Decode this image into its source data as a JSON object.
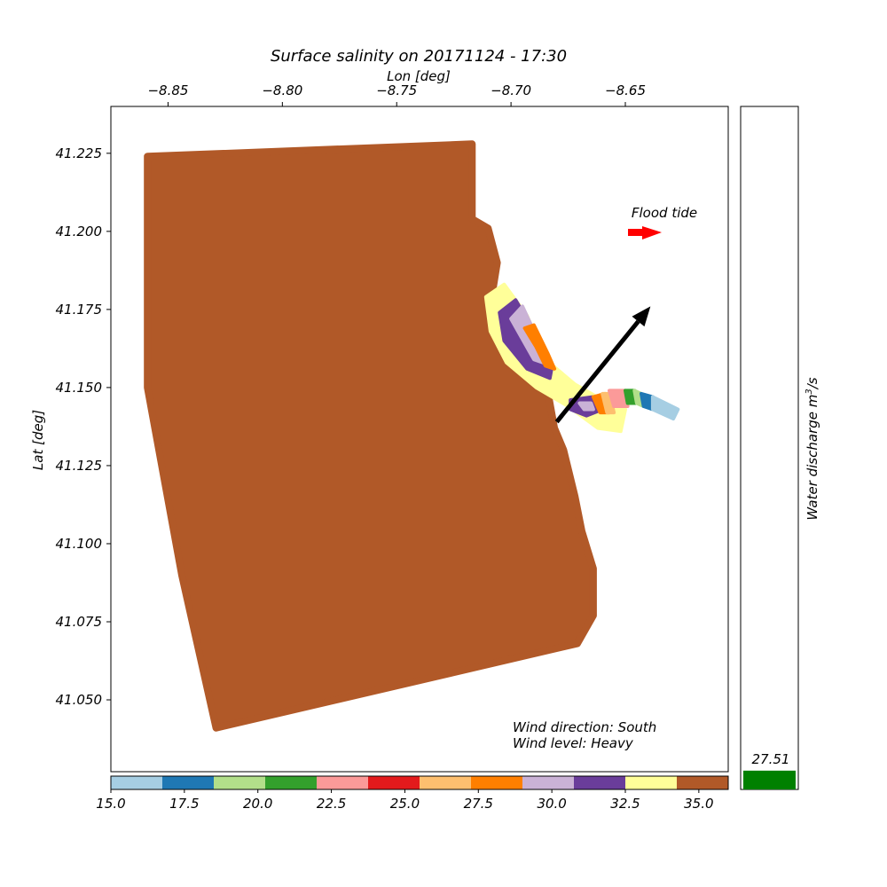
{
  "chart_data": {
    "type": "scatter",
    "title": "Surface salinity on 20171124 - 17:30",
    "xlabel": "Lon [deg]",
    "ylabel": "Lat [deg]",
    "xlim": [
      -8.875,
      -8.605
    ],
    "ylim": [
      41.027,
      41.24
    ],
    "x_ticks": [
      {
        "value": -8.85,
        "label": "−8.85"
      },
      {
        "value": -8.8,
        "label": "−8.80"
      },
      {
        "value": -8.75,
        "label": "−8.75"
      },
      {
        "value": -8.7,
        "label": "−8.70"
      },
      {
        "value": -8.65,
        "label": "−8.65"
      }
    ],
    "y_ticks": [
      {
        "value": 41.05,
        "label": "41.050"
      },
      {
        "value": 41.075,
        "label": "41.075"
      },
      {
        "value": 41.1,
        "label": "41.100"
      },
      {
        "value": 41.125,
        "label": "41.125"
      },
      {
        "value": 41.15,
        "label": "41.150"
      },
      {
        "value": 41.175,
        "label": "41.175"
      },
      {
        "value": 41.2,
        "label": "41.200"
      },
      {
        "value": 41.225,
        "label": "41.225"
      }
    ],
    "ocean_domain_salinity": 35,
    "ocean_domain_outline": [
      [
        -8.859,
        41.224
      ],
      [
        -8.717,
        41.228
      ],
      [
        -8.717,
        41.204
      ],
      [
        -8.71,
        41.201
      ],
      [
        -8.706,
        41.19
      ],
      [
        -8.708,
        41.181
      ],
      [
        -8.708,
        41.169
      ],
      [
        -8.7,
        41.157
      ],
      [
        -8.684,
        41.149
      ],
      [
        -8.681,
        41.137
      ],
      [
        -8.677,
        41.13
      ],
      [
        -8.672,
        41.115
      ],
      [
        -8.669,
        41.104
      ],
      [
        -8.664,
        41.092
      ],
      [
        -8.664,
        41.077
      ],
      [
        -8.671,
        41.068
      ],
      [
        -8.829,
        41.041
      ],
      [
        -8.844,
        41.09
      ],
      [
        -8.859,
        41.15
      ]
    ],
    "plume_bands": [
      {
        "salinity": 33,
        "color": "#ffff99",
        "polygon": [
          [
            -8.711,
            41.179
          ],
          [
            -8.703,
            41.183
          ],
          [
            -8.693,
            41.173
          ],
          [
            -8.685,
            41.159
          ],
          [
            -8.672,
            41.151
          ],
          [
            -8.66,
            41.146
          ],
          [
            -8.65,
            41.143
          ],
          [
            -8.652,
            41.136
          ],
          [
            -8.662,
            41.137
          ],
          [
            -8.675,
            41.144
          ],
          [
            -8.689,
            41.15
          ],
          [
            -8.702,
            41.158
          ],
          [
            -8.709,
            41.168
          ]
        ]
      },
      {
        "salinity": 31.5,
        "color": "#6a3d9a",
        "polygon": [
          [
            -8.705,
            41.174
          ],
          [
            -8.698,
            41.178
          ],
          [
            -8.69,
            41.168
          ],
          [
            -8.682,
            41.157
          ],
          [
            -8.683,
            41.153
          ],
          [
            -8.693,
            41.156
          ],
          [
            -8.703,
            41.165
          ]
        ]
      },
      {
        "salinity": 30,
        "color": "#cab2d6",
        "polygon": [
          [
            -8.7,
            41.172
          ],
          [
            -8.695,
            41.176
          ],
          [
            -8.688,
            41.165
          ],
          [
            -8.682,
            41.157
          ],
          [
            -8.69,
            41.159
          ]
        ]
      },
      {
        "salinity": 28,
        "color": "#ff7f00",
        "polygon": [
          [
            -8.694,
            41.169
          ],
          [
            -8.69,
            41.17
          ],
          [
            -8.684,
            41.161
          ],
          [
            -8.681,
            41.156
          ],
          [
            -8.685,
            41.157
          ],
          [
            -8.689,
            41.163
          ]
        ]
      },
      {
        "salinity": 31.5,
        "color": "#6a3d9a",
        "polygon": [
          [
            -8.674,
            41.146
          ],
          [
            -8.664,
            41.147
          ],
          [
            -8.66,
            41.143
          ],
          [
            -8.667,
            41.141
          ],
          [
            -8.674,
            41.143
          ]
        ]
      },
      {
        "salinity": 30,
        "color": "#cab2d6",
        "polygon": [
          [
            -8.67,
            41.145
          ],
          [
            -8.665,
            41.145
          ],
          [
            -8.664,
            41.143
          ],
          [
            -8.668,
            41.143
          ]
        ]
      },
      {
        "salinity": 28,
        "color": "#ff7f00",
        "polygon": [
          [
            -8.664,
            41.147
          ],
          [
            -8.659,
            41.148
          ],
          [
            -8.657,
            41.142
          ],
          [
            -8.661,
            41.142
          ]
        ]
      },
      {
        "salinity": 26.5,
        "color": "#fdbf6f",
        "polygon": [
          [
            -8.66,
            41.148
          ],
          [
            -8.657,
            41.148
          ],
          [
            -8.655,
            41.142
          ],
          [
            -8.658,
            41.142
          ]
        ]
      },
      {
        "salinity": 23,
        "color": "#fb9a99",
        "polygon": [
          [
            -8.657,
            41.149
          ],
          [
            -8.65,
            41.149
          ],
          [
            -8.649,
            41.144
          ],
          [
            -8.655,
            41.144
          ]
        ]
      },
      {
        "salinity": 21,
        "color": "#33a02c",
        "polygon": [
          [
            -8.65,
            41.149
          ],
          [
            -8.646,
            41.149
          ],
          [
            -8.645,
            41.145
          ],
          [
            -8.649,
            41.145
          ]
        ]
      },
      {
        "salinity": 19.5,
        "color": "#b2df8a",
        "polygon": [
          [
            -8.646,
            41.149
          ],
          [
            -8.643,
            41.148
          ],
          [
            -8.642,
            41.144
          ],
          [
            -8.645,
            41.145
          ]
        ]
      },
      {
        "salinity": 17.5,
        "color": "#1f78b4",
        "polygon": [
          [
            -8.643,
            41.148
          ],
          [
            -8.638,
            41.147
          ],
          [
            -8.638,
            41.143
          ],
          [
            -8.642,
            41.144
          ]
        ]
      },
      {
        "salinity": 16,
        "color": "#a6cee3",
        "polygon": [
          [
            -8.638,
            41.147
          ],
          [
            -8.627,
            41.143
          ],
          [
            -8.629,
            41.14
          ],
          [
            -8.638,
            41.143
          ]
        ]
      }
    ],
    "wind_arrow": {
      "from": [
        -8.68,
        41.139
      ],
      "to": [
        -8.639,
        41.176
      ]
    },
    "flood_tide_label": "Flood tide",
    "wind_direction_text": "Wind direction: South",
    "wind_level_text": "Wind level: Heavy",
    "colorbar": {
      "range": [
        15,
        36
      ],
      "colors": [
        "#a6cee3",
        "#1f78b4",
        "#b2df8a",
        "#33a02c",
        "#fb9a99",
        "#e31a1c",
        "#fdbf6f",
        "#ff7f00",
        "#cab2d6",
        "#6a3d9a",
        "#ffff99",
        "#b15928"
      ],
      "ticks": [
        {
          "value": 15.0,
          "label": "15.0"
        },
        {
          "value": 17.5,
          "label": "17.5"
        },
        {
          "value": 20.0,
          "label": "20.0"
        },
        {
          "value": 22.5,
          "label": "22.5"
        },
        {
          "value": 25.0,
          "label": "25.0"
        },
        {
          "value": 27.5,
          "label": "27.5"
        },
        {
          "value": 30.0,
          "label": "30.0"
        },
        {
          "value": 32.5,
          "label": "32.5"
        },
        {
          "value": 35.0,
          "label": "35.0"
        }
      ]
    },
    "discharge": {
      "label": "Water discharge m",
      "label_sup": "3",
      "label_suffix": "/s",
      "value": 27.51,
      "value_text": "27.51",
      "bar_color": "#008000",
      "max": 1000
    }
  }
}
